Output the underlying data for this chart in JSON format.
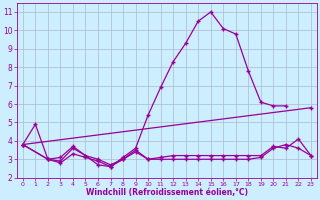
{
  "bg_color": "#cceeff",
  "line_color": "#990099",
  "grid_color": "#aabbcc",
  "xlabel": "Windchill (Refroidissement éolien,°C)",
  "xlim": [
    -0.5,
    23.5
  ],
  "ylim": [
    2,
    11.5
  ],
  "yticks": [
    2,
    3,
    4,
    5,
    6,
    7,
    8,
    9,
    10,
    11
  ],
  "xticks": [
    0,
    1,
    2,
    3,
    4,
    5,
    6,
    7,
    8,
    9,
    10,
    11,
    12,
    13,
    14,
    15,
    16,
    17,
    18,
    19,
    20,
    21,
    22,
    23
  ],
  "series1_x": [
    0,
    1,
    2,
    3,
    4,
    5,
    6,
    7,
    8,
    9,
    10,
    11,
    12,
    13,
    14,
    15,
    16,
    17,
    18,
    19,
    20,
    21
  ],
  "series1_y": [
    3.8,
    4.9,
    3.0,
    3.1,
    3.7,
    3.2,
    2.7,
    2.6,
    3.1,
    3.6,
    5.4,
    6.9,
    8.3,
    9.3,
    10.5,
    11.0,
    10.1,
    9.8,
    7.8,
    6.1,
    5.9,
    5.9
  ],
  "series2_x": [
    0,
    23
  ],
  "series2_y": [
    3.8,
    5.8
  ],
  "series3_x": [
    0,
    2,
    3,
    4,
    5,
    6,
    7,
    8,
    9,
    10,
    11,
    12,
    13,
    14,
    15,
    16,
    17,
    18,
    19,
    20,
    21,
    22,
    23
  ],
  "series3_y": [
    3.8,
    3.0,
    2.8,
    3.3,
    3.1,
    2.9,
    2.6,
    3.0,
    3.4,
    3.0,
    3.0,
    3.0,
    3.0,
    3.0,
    3.0,
    3.0,
    3.0,
    3.0,
    3.1,
    3.6,
    3.8,
    3.6,
    3.2
  ],
  "series4_x": [
    0,
    2,
    3,
    4,
    5,
    6,
    7,
    8,
    9,
    10,
    11,
    12,
    13,
    14,
    15,
    16,
    17,
    18,
    19,
    20,
    21,
    22,
    23
  ],
  "series4_y": [
    3.8,
    3.0,
    2.9,
    3.6,
    3.2,
    3.0,
    2.7,
    3.0,
    3.5,
    3.0,
    3.1,
    3.2,
    3.2,
    3.2,
    3.2,
    3.2,
    3.2,
    3.2,
    3.2,
    3.7,
    3.6,
    4.1,
    3.2
  ]
}
